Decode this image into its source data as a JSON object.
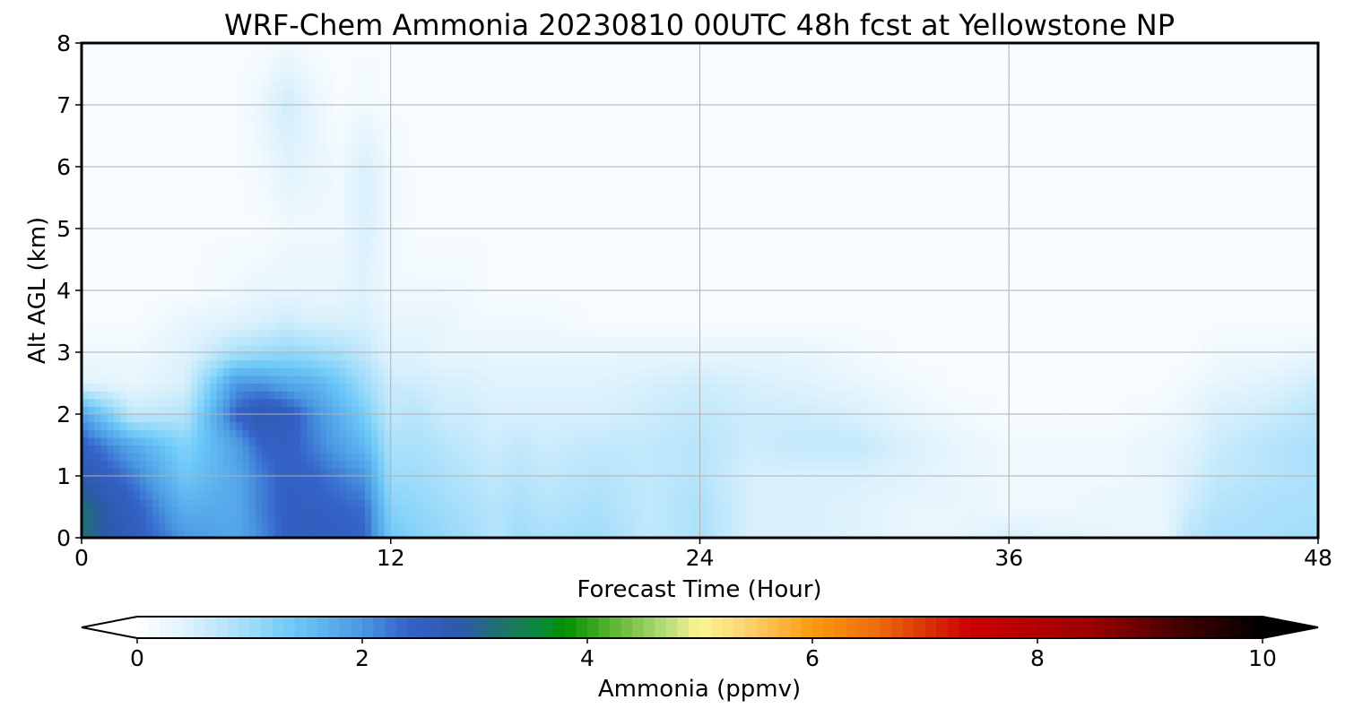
{
  "chart_data": {
    "type": "heatmap",
    "title": "WRF-Chem Ammonia  20230810 00UTC 48h fcst at Yellowstone NP",
    "xlabel": "Forecast Time (Hour)",
    "ylabel": "Alt AGL (km)",
    "xlim": [
      0,
      48
    ],
    "ylim": [
      0,
      8
    ],
    "xticks": [
      0,
      12,
      24,
      36,
      48
    ],
    "yticks": [
      0,
      1,
      2,
      3,
      4,
      5,
      6,
      7,
      8
    ],
    "grid": true,
    "colorbar": {
      "label": "Ammonia  (ppmv)",
      "min": 0,
      "max": 10,
      "ticks": [
        0,
        2,
        4,
        6,
        8,
        10
      ],
      "extend": "both",
      "orientation": "horizontal",
      "stops": [
        {
          "v": 0.0,
          "color": "#ffffff"
        },
        {
          "v": 0.5,
          "color": "#d8f0fc"
        },
        {
          "v": 1.0,
          "color": "#9fdcfa"
        },
        {
          "v": 1.4,
          "color": "#6cc8f8"
        },
        {
          "v": 2.0,
          "color": "#4a98e2"
        },
        {
          "v": 2.4,
          "color": "#3462c8"
        },
        {
          "v": 2.9,
          "color": "#2c5aa8"
        },
        {
          "v": 3.2,
          "color": "#207070"
        },
        {
          "v": 3.6,
          "color": "#0a8a38"
        },
        {
          "v": 3.8,
          "color": "#009000"
        },
        {
          "v": 4.3,
          "color": "#6cbc3c"
        },
        {
          "v": 4.7,
          "color": "#b8dc7a"
        },
        {
          "v": 5.0,
          "color": "#fcf690"
        },
        {
          "v": 5.4,
          "color": "#fcd474"
        },
        {
          "v": 6.0,
          "color": "#fc9a10"
        },
        {
          "v": 6.6,
          "color": "#ec6a0c"
        },
        {
          "v": 7.4,
          "color": "#cc0000"
        },
        {
          "v": 8.5,
          "color": "#9a0000"
        },
        {
          "v": 9.2,
          "color": "#4a0000"
        },
        {
          "v": 10.0,
          "color": "#000000"
        }
      ]
    },
    "field": {
      "description_units": "ppmv",
      "x_hours": [
        0,
        2,
        4,
        6,
        7,
        8,
        9,
        10,
        11,
        12,
        13,
        14,
        15,
        16,
        17,
        18,
        20,
        22,
        24,
        26,
        28,
        30,
        32,
        34,
        36,
        38,
        40,
        42,
        43,
        44,
        46,
        48
      ],
      "z_km": [
        0,
        0.5,
        1,
        1.5,
        2,
        2.5,
        3,
        3.5,
        4,
        5,
        6,
        7,
        8
      ],
      "values": [
        [
          3.2,
          2.6,
          2.0,
          1.8,
          2.1,
          2.5,
          2.6,
          2.5,
          2.4,
          1.4,
          1.2,
          1.1,
          1.0,
          0.8,
          1.0,
          0.9,
          1.0,
          0.7,
          0.9,
          0.5,
          0.5,
          0.4,
          0.3,
          0.3,
          0.5,
          0.4,
          0.3,
          0.3,
          0.8,
          0.9,
          0.9,
          1.0
        ],
        [
          3.2,
          2.5,
          1.7,
          1.8,
          2.2,
          2.5,
          2.5,
          2.4,
          2.3,
          1.2,
          1.1,
          1.0,
          0.9,
          0.8,
          0.9,
          0.8,
          0.9,
          0.7,
          0.9,
          0.5,
          0.5,
          0.4,
          0.3,
          0.3,
          0.2,
          0.2,
          0.3,
          0.3,
          0.6,
          0.8,
          0.9,
          0.9
        ],
        [
          2.8,
          2.2,
          1.4,
          1.8,
          2.2,
          2.5,
          2.4,
          2.2,
          2.0,
          1.0,
          1.0,
          0.9,
          0.8,
          0.7,
          0.8,
          0.7,
          0.8,
          0.7,
          0.8,
          0.5,
          0.5,
          0.5,
          0.4,
          0.3,
          0.2,
          0.2,
          0.2,
          0.3,
          0.5,
          0.7,
          0.8,
          0.9
        ],
        [
          2.5,
          1.8,
          1.2,
          1.9,
          2.4,
          2.5,
          2.2,
          1.9,
          1.6,
          0.9,
          0.9,
          0.8,
          0.7,
          0.6,
          0.7,
          0.6,
          0.7,
          0.7,
          0.8,
          0.6,
          0.7,
          0.7,
          0.5,
          0.3,
          0.2,
          0.2,
          0.2,
          0.3,
          0.4,
          0.6,
          0.8,
          0.9
        ],
        [
          1.9,
          0.7,
          0.8,
          2.4,
          2.8,
          2.6,
          2.1,
          1.7,
          1.3,
          0.7,
          0.8,
          0.6,
          0.6,
          0.5,
          0.5,
          0.5,
          0.5,
          0.6,
          0.7,
          0.6,
          0.6,
          0.5,
          0.3,
          0.2,
          0.1,
          0.1,
          0.1,
          0.2,
          0.3,
          0.5,
          0.6,
          0.8
        ],
        [
          0.4,
          0.3,
          0.5,
          2.0,
          2.0,
          1.8,
          1.7,
          1.4,
          1.0,
          0.6,
          0.6,
          0.5,
          0.5,
          0.4,
          0.4,
          0.4,
          0.4,
          0.5,
          0.6,
          0.5,
          0.4,
          0.3,
          0.2,
          0.1,
          0.1,
          0.1,
          0.1,
          0.1,
          0.2,
          0.3,
          0.4,
          0.6
        ],
        [
          0.2,
          0.2,
          0.4,
          0.9,
          1.0,
          1.1,
          1.0,
          0.9,
          0.7,
          0.4,
          0.4,
          0.3,
          0.3,
          0.3,
          0.3,
          0.3,
          0.3,
          0.3,
          0.3,
          0.3,
          0.3,
          0.2,
          0.1,
          0.1,
          0.1,
          0.1,
          0.1,
          0.1,
          0.1,
          0.2,
          0.2,
          0.3
        ],
        [
          0.1,
          0.1,
          0.3,
          0.4,
          0.5,
          0.6,
          0.5,
          0.5,
          0.5,
          0.3,
          0.3,
          0.3,
          0.2,
          0.2,
          0.2,
          0.2,
          0.1,
          0.1,
          0.1,
          0.1,
          0.1,
          0.1,
          0.1,
          0.1,
          0.1,
          0.1,
          0.1,
          0.1,
          0.1,
          0.1,
          0.1,
          0.1
        ],
        [
          0.1,
          0.1,
          0.1,
          0.2,
          0.3,
          0.3,
          0.3,
          0.3,
          0.4,
          0.2,
          0.2,
          0.2,
          0.2,
          0.1,
          0.1,
          0.1,
          0.1,
          0.1,
          0.1,
          0.1,
          0.1,
          0.1,
          0.1,
          0.1,
          0.1,
          0.1,
          0.1,
          0.1,
          0.1,
          0.1,
          0.1,
          0.1
        ],
        [
          0.1,
          0.1,
          0.1,
          0.1,
          0.1,
          0.2,
          0.2,
          0.2,
          0.5,
          0.2,
          0.1,
          0.1,
          0.1,
          0.1,
          0.1,
          0.1,
          0.1,
          0.1,
          0.1,
          0.1,
          0.1,
          0.1,
          0.1,
          0.1,
          0.1,
          0.1,
          0.1,
          0.1,
          0.1,
          0.1,
          0.1,
          0.1
        ],
        [
          0.1,
          0.1,
          0.1,
          0.1,
          0.2,
          0.4,
          0.3,
          0.2,
          0.5,
          0.2,
          0.1,
          0.1,
          0.1,
          0.1,
          0.1,
          0.1,
          0.1,
          0.1,
          0.1,
          0.1,
          0.1,
          0.1,
          0.1,
          0.1,
          0.1,
          0.1,
          0.1,
          0.1,
          0.1,
          0.1,
          0.1,
          0.1
        ],
        [
          0.1,
          0.1,
          0.1,
          0.1,
          0.3,
          0.6,
          0.3,
          0.1,
          0.2,
          0.1,
          0.1,
          0.1,
          0.1,
          0.1,
          0.1,
          0.1,
          0.1,
          0.1,
          0.1,
          0.1,
          0.1,
          0.1,
          0.1,
          0.1,
          0.1,
          0.1,
          0.1,
          0.1,
          0.1,
          0.1,
          0.1,
          0.1
        ],
        [
          0.1,
          0.1,
          0.1,
          0.1,
          0.1,
          0.2,
          0.1,
          0.1,
          0.1,
          0.1,
          0.1,
          0.1,
          0.1,
          0.1,
          0.1,
          0.1,
          0.1,
          0.1,
          0.1,
          0.1,
          0.1,
          0.1,
          0.1,
          0.1,
          0.1,
          0.1,
          0.1,
          0.1,
          0.1,
          0.1,
          0.1,
          0.1
        ]
      ]
    }
  }
}
